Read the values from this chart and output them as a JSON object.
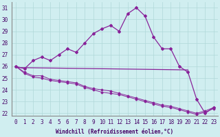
{
  "title": "",
  "xlabel": "Windchill (Refroidissement éolien,°C)",
  "ylabel": "",
  "bg_color": "#d0eef0",
  "grid_color": "#b0d8d8",
  "line_color": "#882299",
  "xlim": [
    -0.5,
    23.5
  ],
  "ylim": [
    21.8,
    31.5
  ],
  "yticks": [
    22,
    23,
    24,
    25,
    26,
    27,
    28,
    29,
    30,
    31
  ],
  "xticks": [
    0,
    1,
    2,
    3,
    4,
    5,
    6,
    7,
    8,
    9,
    10,
    11,
    12,
    13,
    14,
    15,
    16,
    17,
    18,
    19,
    20,
    21,
    22,
    23
  ],
  "line1_x": [
    0,
    1,
    2,
    3,
    4,
    5,
    6,
    7,
    8,
    9,
    10,
    11,
    12,
    13,
    14,
    15,
    16,
    17,
    18,
    19,
    20,
    21,
    22,
    23
  ],
  "line1_y": [
    26.0,
    25.8,
    26.5,
    26.8,
    26.5,
    27.0,
    27.5,
    27.2,
    28.0,
    28.8,
    29.2,
    29.5,
    29.0,
    30.5,
    31.0,
    30.3,
    28.5,
    27.5,
    27.5,
    26.0,
    25.5,
    23.2,
    22.0,
    22.5
  ],
  "line2_x": [
    0,
    10,
    20
  ],
  "line2_y": [
    25.9,
    25.8,
    25.7
  ],
  "line3_x": [
    0,
    1,
    2,
    3,
    4,
    5,
    6,
    7,
    8,
    9,
    10,
    11,
    12,
    13,
    14,
    15,
    16,
    17,
    18,
    19,
    20,
    21,
    22,
    23
  ],
  "line3_y": [
    26.0,
    25.5,
    25.2,
    25.2,
    24.9,
    24.8,
    24.7,
    24.6,
    24.3,
    24.1,
    24.0,
    23.9,
    23.7,
    23.5,
    23.3,
    23.1,
    22.9,
    22.7,
    22.6,
    22.4,
    22.2,
    22.0,
    22.2,
    22.5
  ],
  "line4_x": [
    0,
    1,
    2,
    3,
    4,
    5,
    6,
    7,
    8,
    9,
    10,
    11,
    12,
    13,
    14,
    15,
    16,
    17,
    18,
    19,
    20,
    21,
    22,
    23
  ],
  "line4_y": [
    26.0,
    25.4,
    25.1,
    25.0,
    24.8,
    24.7,
    24.6,
    24.5,
    24.2,
    24.0,
    23.8,
    23.7,
    23.6,
    23.4,
    23.2,
    23.0,
    22.8,
    22.6,
    22.5,
    22.3,
    22.1,
    21.9,
    22.1,
    22.4
  ]
}
